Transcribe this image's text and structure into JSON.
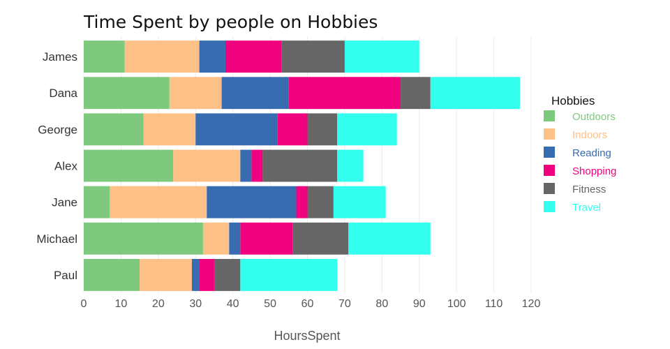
{
  "chart_data": {
    "type": "bar",
    "orientation": "horizontal",
    "stacked": true,
    "title": "Time Spent by people on Hobbies",
    "xlabel": "HoursSpent",
    "ylabel": "",
    "xlim": [
      0,
      120
    ],
    "xticks": [
      0,
      10,
      20,
      30,
      40,
      50,
      60,
      70,
      80,
      90,
      100,
      110,
      120
    ],
    "grid": true,
    "legend_position": "right",
    "legend_title": "Hobbies",
    "categories": [
      "James",
      "Dana",
      "George",
      "Alex",
      "Jane",
      "Michael",
      "Paul"
    ],
    "series": [
      {
        "name": "Outdoors",
        "color": "#7fc97f",
        "values": [
          11,
          23,
          16,
          24,
          7,
          32,
          15
        ]
      },
      {
        "name": "Indoors",
        "color": "#fdc086",
        "values": [
          20,
          14,
          14,
          18,
          26,
          7,
          14
        ]
      },
      {
        "name": "Reading",
        "color": "#386cb0",
        "values": [
          7,
          18,
          22,
          3,
          24,
          3,
          2
        ]
      },
      {
        "name": "Shopping",
        "color": "#f0027f",
        "values": [
          15,
          30,
          8,
          3,
          3,
          14,
          4
        ]
      },
      {
        "name": "Fitness",
        "color": "#666666",
        "values": [
          17,
          8,
          8,
          20,
          7,
          15,
          7
        ]
      },
      {
        "name": "Travel",
        "color": "#33ffee",
        "values": [
          20,
          24,
          16,
          7,
          14,
          22,
          26
        ]
      }
    ]
  }
}
